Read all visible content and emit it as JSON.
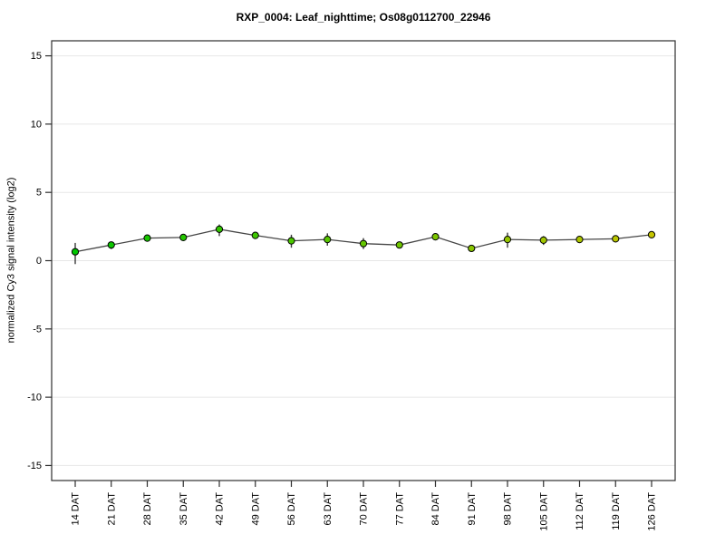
{
  "chart_data": {
    "type": "line",
    "title": "RXP_0004: Leaf_nighttime; Os08g0112700_22946",
    "ylabel": "normalized Cy3 signal intensity (log2)",
    "xlabel": "",
    "legend": "none",
    "grid": "horizontal light lines at each y tick",
    "categories": [
      "14 DAT",
      "21 DAT",
      "28 DAT",
      "35 DAT",
      "42 DAT",
      "49 DAT",
      "56 DAT",
      "63 DAT",
      "70 DAT",
      "77 DAT",
      "84 DAT",
      "91 DAT",
      "98 DAT",
      "105 DAT",
      "112 DAT",
      "119 DAT",
      "126 DAT"
    ],
    "values": [
      0.65,
      1.15,
      1.65,
      1.7,
      2.3,
      1.85,
      1.45,
      1.55,
      1.25,
      1.15,
      1.75,
      0.9,
      1.55,
      1.5,
      1.55,
      1.6,
      1.9
    ],
    "error_low": [
      -0.25,
      0.85,
      1.4,
      1.5,
      1.8,
      1.7,
      0.95,
      1.1,
      0.85,
      1.0,
      1.6,
      0.8,
      0.95,
      1.15,
      1.4,
      1.45,
      1.8
    ],
    "error_high": [
      1.3,
      1.4,
      1.85,
      1.9,
      2.65,
      2.0,
      1.9,
      2.0,
      1.65,
      1.3,
      1.9,
      1.0,
      2.05,
      1.8,
      1.7,
      1.75,
      2.0
    ],
    "point_colors": [
      "#00c600",
      "#0cc600",
      "#19c600",
      "#25c600",
      "#32c600",
      "#3ec600",
      "#4ac600",
      "#57c600",
      "#63c600",
      "#6fc600",
      "#7cc600",
      "#88c600",
      "#95c600",
      "#a1c600",
      "#adc600",
      "#bac600",
      "#c6c600"
    ],
    "yticks": [
      15,
      10,
      5,
      0,
      -5,
      -10,
      -15
    ],
    "ylim": [
      -16.1,
      16.1
    ],
    "colors": {
      "frame": "#2e2e2e",
      "grid": "#e7e7e7",
      "line": "#464646",
      "error_bar": "#3a3a3a",
      "marker_edge": "#000000",
      "background": "#ffffff"
    }
  }
}
